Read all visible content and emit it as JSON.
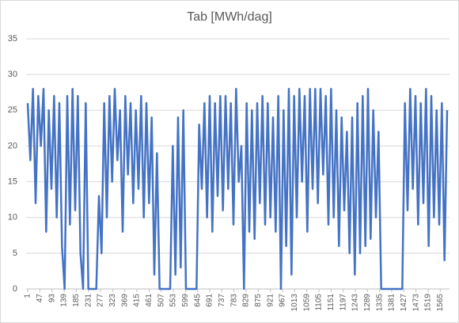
{
  "chart_data": {
    "type": "line",
    "title": "Tab [MWh/dag]",
    "x": [
      1,
      11,
      21,
      31,
      41,
      51,
      61,
      71,
      81,
      91,
      101,
      111,
      121,
      131,
      141,
      151,
      161,
      171,
      181,
      191,
      201,
      211,
      221,
      231,
      241,
      251,
      261,
      271,
      281,
      291,
      301,
      311,
      321,
      331,
      341,
      351,
      361,
      371,
      381,
      391,
      401,
      411,
      421,
      431,
      441,
      451,
      461,
      471,
      481,
      491,
      501,
      511,
      521,
      531,
      541,
      551,
      561,
      571,
      581,
      591,
      601,
      611,
      621,
      631,
      641,
      651,
      661,
      671,
      681,
      691,
      701,
      711,
      721,
      731,
      741,
      751,
      761,
      771,
      781,
      791,
      801,
      811,
      821,
      831,
      841,
      851,
      861,
      871,
      881,
      891,
      901,
      911,
      921,
      931,
      941,
      951,
      961,
      971,
      981,
      991,
      1001,
      1011,
      1021,
      1031,
      1041,
      1051,
      1061,
      1071,
      1081,
      1091,
      1101,
      1111,
      1121,
      1131,
      1141,
      1151,
      1161,
      1171,
      1181,
      1191,
      1201,
      1211,
      1221,
      1231,
      1241,
      1251,
      1261,
      1271,
      1281,
      1291,
      1301,
      1311,
      1321,
      1331,
      1341,
      1351,
      1361,
      1371,
      1381,
      1391,
      1401,
      1411,
      1421,
      1431,
      1441,
      1451,
      1461,
      1471,
      1481,
      1491,
      1501,
      1511,
      1521,
      1531,
      1541,
      1551,
      1561,
      1571,
      1581,
      1591
    ],
    "series": [
      {
        "color": "#4472c4",
        "values": [
          26,
          18,
          28,
          12,
          27,
          20,
          28,
          8,
          25,
          14,
          27,
          10,
          26,
          6,
          0,
          27,
          9,
          28,
          11,
          27,
          5,
          0,
          26,
          0,
          0,
          0,
          0,
          13,
          5,
          26,
          10,
          27,
          15,
          28,
          18,
          25,
          8,
          27,
          16,
          26,
          12,
          25,
          14,
          27,
          10,
          26,
          12,
          24,
          2,
          19,
          0,
          0,
          0,
          0,
          0,
          20,
          2,
          24,
          3,
          25,
          0,
          0,
          0,
          0,
          0,
          23,
          14,
          26,
          10,
          27,
          8,
          26,
          13,
          27,
          11,
          27,
          14,
          26,
          9,
          28,
          15,
          20,
          0,
          26,
          8,
          25,
          7,
          26,
          12,
          27,
          9,
          26,
          10,
          24,
          8,
          27,
          0,
          25,
          6,
          28,
          2,
          27,
          10,
          28,
          15,
          27,
          8,
          28,
          14,
          28,
          12,
          28,
          16,
          27,
          9,
          28,
          10,
          25,
          6,
          24,
          11,
          22,
          5,
          24,
          2,
          26,
          5,
          27,
          6,
          28,
          7,
          25,
          10,
          22,
          0,
          0,
          0,
          0,
          0,
          0,
          0,
          0,
          0,
          26,
          11,
          28,
          14,
          27,
          9,
          26,
          12,
          28,
          6,
          27,
          10,
          25,
          9,
          26,
          4,
          25
        ]
      }
    ],
    "xlim": [
      1,
      1600
    ],
    "xticks": [
      1,
      47,
      93,
      139,
      185,
      231,
      277,
      323,
      369,
      415,
      461,
      507,
      553,
      599,
      645,
      691,
      737,
      783,
      829,
      875,
      921,
      967,
      1013,
      1059,
      1105,
      1151,
      1197,
      1243,
      1289,
      1335,
      1381,
      1427,
      1473,
      1519,
      1565
    ],
    "ylim": [
      0,
      35
    ],
    "yticks": [
      0,
      5,
      10,
      15,
      20,
      25,
      30,
      35
    ],
    "grid": true
  }
}
